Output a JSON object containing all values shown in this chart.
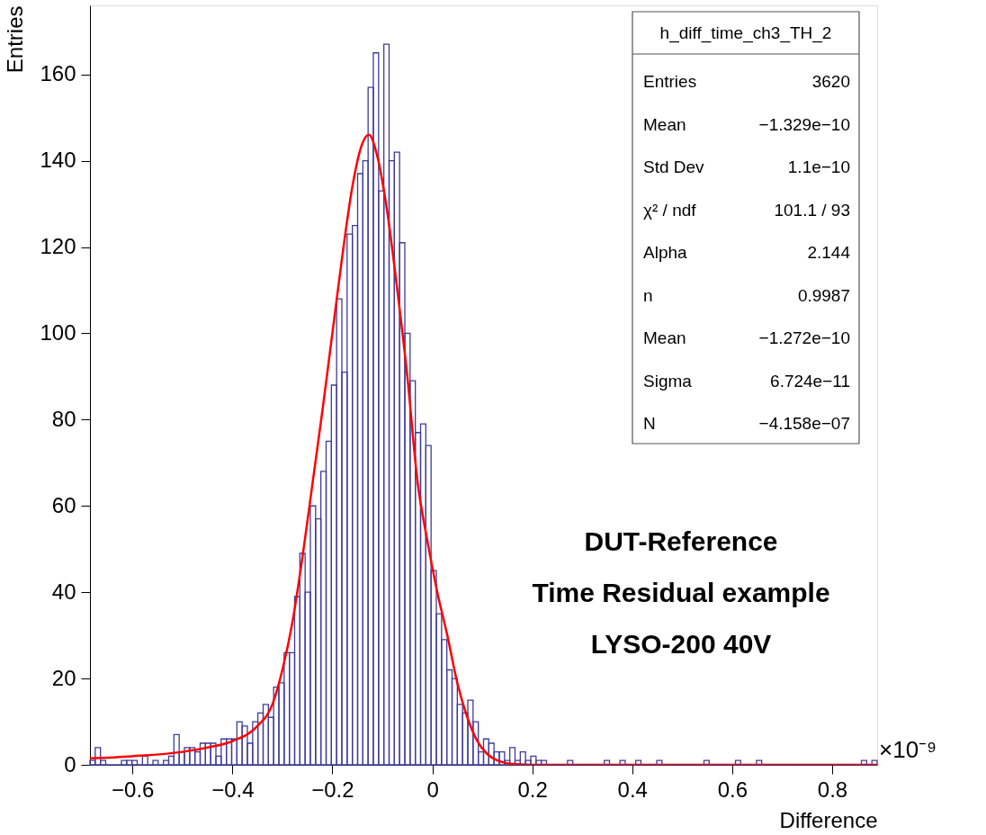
{
  "chart_data": {
    "type": "histogram",
    "xlabel": "Difference",
    "ylabel": "Entries",
    "color": "#3c3c9c",
    "bins": [
      -0.685,
      -0.6745,
      -0.664,
      -0.6535,
      -0.643,
      -0.6325,
      -0.622,
      -0.6115,
      -0.601,
      -0.5905,
      -0.58,
      -0.5695,
      -0.559,
      -0.5485,
      -0.538,
      -0.5275,
      -0.517,
      -0.5065,
      -0.496,
      -0.4855,
      -0.475,
      -0.4645,
      -0.454,
      -0.4435,
      -0.433,
      -0.4225,
      -0.412,
      -0.4015,
      -0.391,
      -0.3805,
      -0.37,
      -0.3595,
      -0.349,
      -0.3385,
      -0.328,
      -0.3175,
      -0.307,
      -0.2965,
      -0.286,
      -0.2755,
      -0.265,
      -0.2545,
      -0.244,
      -0.2335,
      -0.223,
      -0.2125,
      -0.202,
      -0.1915,
      -0.181,
      -0.1705,
      -0.16,
      -0.1495,
      -0.139,
      -0.1285,
      -0.118,
      -0.1075,
      -0.097,
      -0.0865,
      -0.076,
      -0.0655,
      -0.055,
      -0.0445,
      -0.034,
      -0.0235,
      -0.013,
      -0.0025,
      0.008,
      0.0185,
      0.029,
      0.0395,
      0.05,
      0.0605,
      0.071,
      0.0815,
      0.092,
      0.1025,
      0.113,
      0.1235,
      0.134,
      0.1445,
      0.155,
      0.1655,
      0.176,
      0.1865,
      0.197,
      0.2075,
      0.218,
      0.2285,
      0.239,
      0.2495,
      0.26,
      0.2705,
      0.281,
      0.2915,
      0.302,
      0.3125,
      0.323,
      0.3335,
      0.344,
      0.3545,
      0.365,
      0.3755,
      0.386,
      0.3965,
      0.407,
      0.4175,
      0.428,
      0.4385,
      0.449,
      0.4595,
      0.47,
      0.4805,
      0.491,
      0.5015,
      0.512,
      0.5225,
      0.533,
      0.5435,
      0.554,
      0.5645,
      0.575,
      0.5855,
      0.596,
      0.6065,
      0.617,
      0.6275,
      0.638,
      0.6485,
      0.659,
      0.6695,
      0.68,
      0.6905,
      0.701,
      0.7115,
      0.722,
      0.7325,
      0.743,
      0.7535,
      0.764,
      0.7745,
      0.785,
      0.7955,
      0.806,
      0.8165,
      0.827,
      0.8375,
      0.848,
      0.8585,
      0.869,
      0.8795,
      0.89
    ],
    "values": [
      1,
      4,
      1,
      0,
      0,
      0,
      1,
      1,
      1,
      0,
      2,
      0,
      1,
      0,
      1,
      2,
      7,
      3,
      4,
      4,
      3,
      5,
      5,
      5,
      2,
      6,
      6,
      6,
      10,
      9,
      5,
      10,
      12,
      14,
      11,
      18,
      19,
      26,
      26,
      39,
      49,
      40,
      60,
      57,
      68,
      75,
      88,
      108,
      91,
      123,
      125,
      137,
      140,
      157,
      165,
      133,
      167,
      140,
      142,
      121,
      100,
      89,
      77,
      79,
      74,
      45,
      35,
      29,
      22,
      20,
      14,
      12,
      15,
      10,
      3,
      6,
      5,
      3,
      3,
      1,
      4,
      1,
      3,
      1,
      2,
      1,
      1,
      0,
      0,
      0,
      0,
      1,
      0,
      0,
      0,
      0,
      0,
      0,
      1,
      0,
      0,
      1,
      0,
      0,
      1,
      0,
      0,
      0,
      1,
      0,
      0,
      0,
      0,
      0,
      0,
      0,
      0,
      1,
      0,
      0,
      0,
      0,
      0,
      1,
      0,
      0,
      0,
      1,
      0,
      0,
      0,
      0,
      0,
      0,
      0,
      0,
      0,
      0,
      0,
      0,
      0,
      0,
      0,
      0,
      0,
      0,
      0,
      1,
      0,
      1
    ],
    "series": [
      {
        "type": "line",
        "color": "#ff0000",
        "x": [
          -0.685,
          -0.6,
          -0.5,
          -0.45,
          -0.4,
          -0.35,
          -0.32,
          -0.3,
          -0.28,
          -0.26,
          -0.24,
          -0.22,
          -0.2,
          -0.18,
          -0.16,
          -0.14,
          -0.127,
          -0.11,
          -0.09,
          -0.07,
          -0.05,
          -0.03,
          -0.01,
          0.01,
          0.03,
          0.05,
          0.07,
          0.09,
          0.11,
          0.13,
          0.16,
          0.2,
          0.89
        ],
        "values": [
          1.5,
          2,
          3,
          4,
          5.5,
          9,
          14,
          22,
          33,
          48,
          65,
          82,
          100,
          118,
          134,
          144,
          146,
          141,
          128,
          110,
          90,
          66,
          52,
          40,
          30,
          19,
          11,
          5.5,
          2.5,
          1,
          0.2,
          0,
          0
        ]
      }
    ],
    "xlim": [
      -0.685,
      0.89
    ],
    "ylim": [
      0,
      176
    ],
    "xticks": [
      -0.6,
      -0.4,
      -0.2,
      0,
      0.2,
      0.4,
      0.6,
      0.8
    ],
    "yticks": [
      0,
      20,
      40,
      60,
      80,
      100,
      120,
      140,
      160
    ],
    "annotations": [
      "h_diff_time_ch3_TH_2",
      "Entries",
      "3620",
      "Mean",
      "−1.329e−10",
      "Std Dev",
      "1.1e−10",
      "χ² / ndf",
      "101.1 / 93",
      "Alpha",
      "2.144",
      "n",
      "0.9987",
      "Mean",
      "−1.272e−10",
      "Sigma",
      "6.724e−11",
      "N",
      "−4.158e−07",
      "DUT-Reference",
      "Time Residual example",
      "LYSO-200 40V",
      "×10⁻⁹"
    ]
  }
}
